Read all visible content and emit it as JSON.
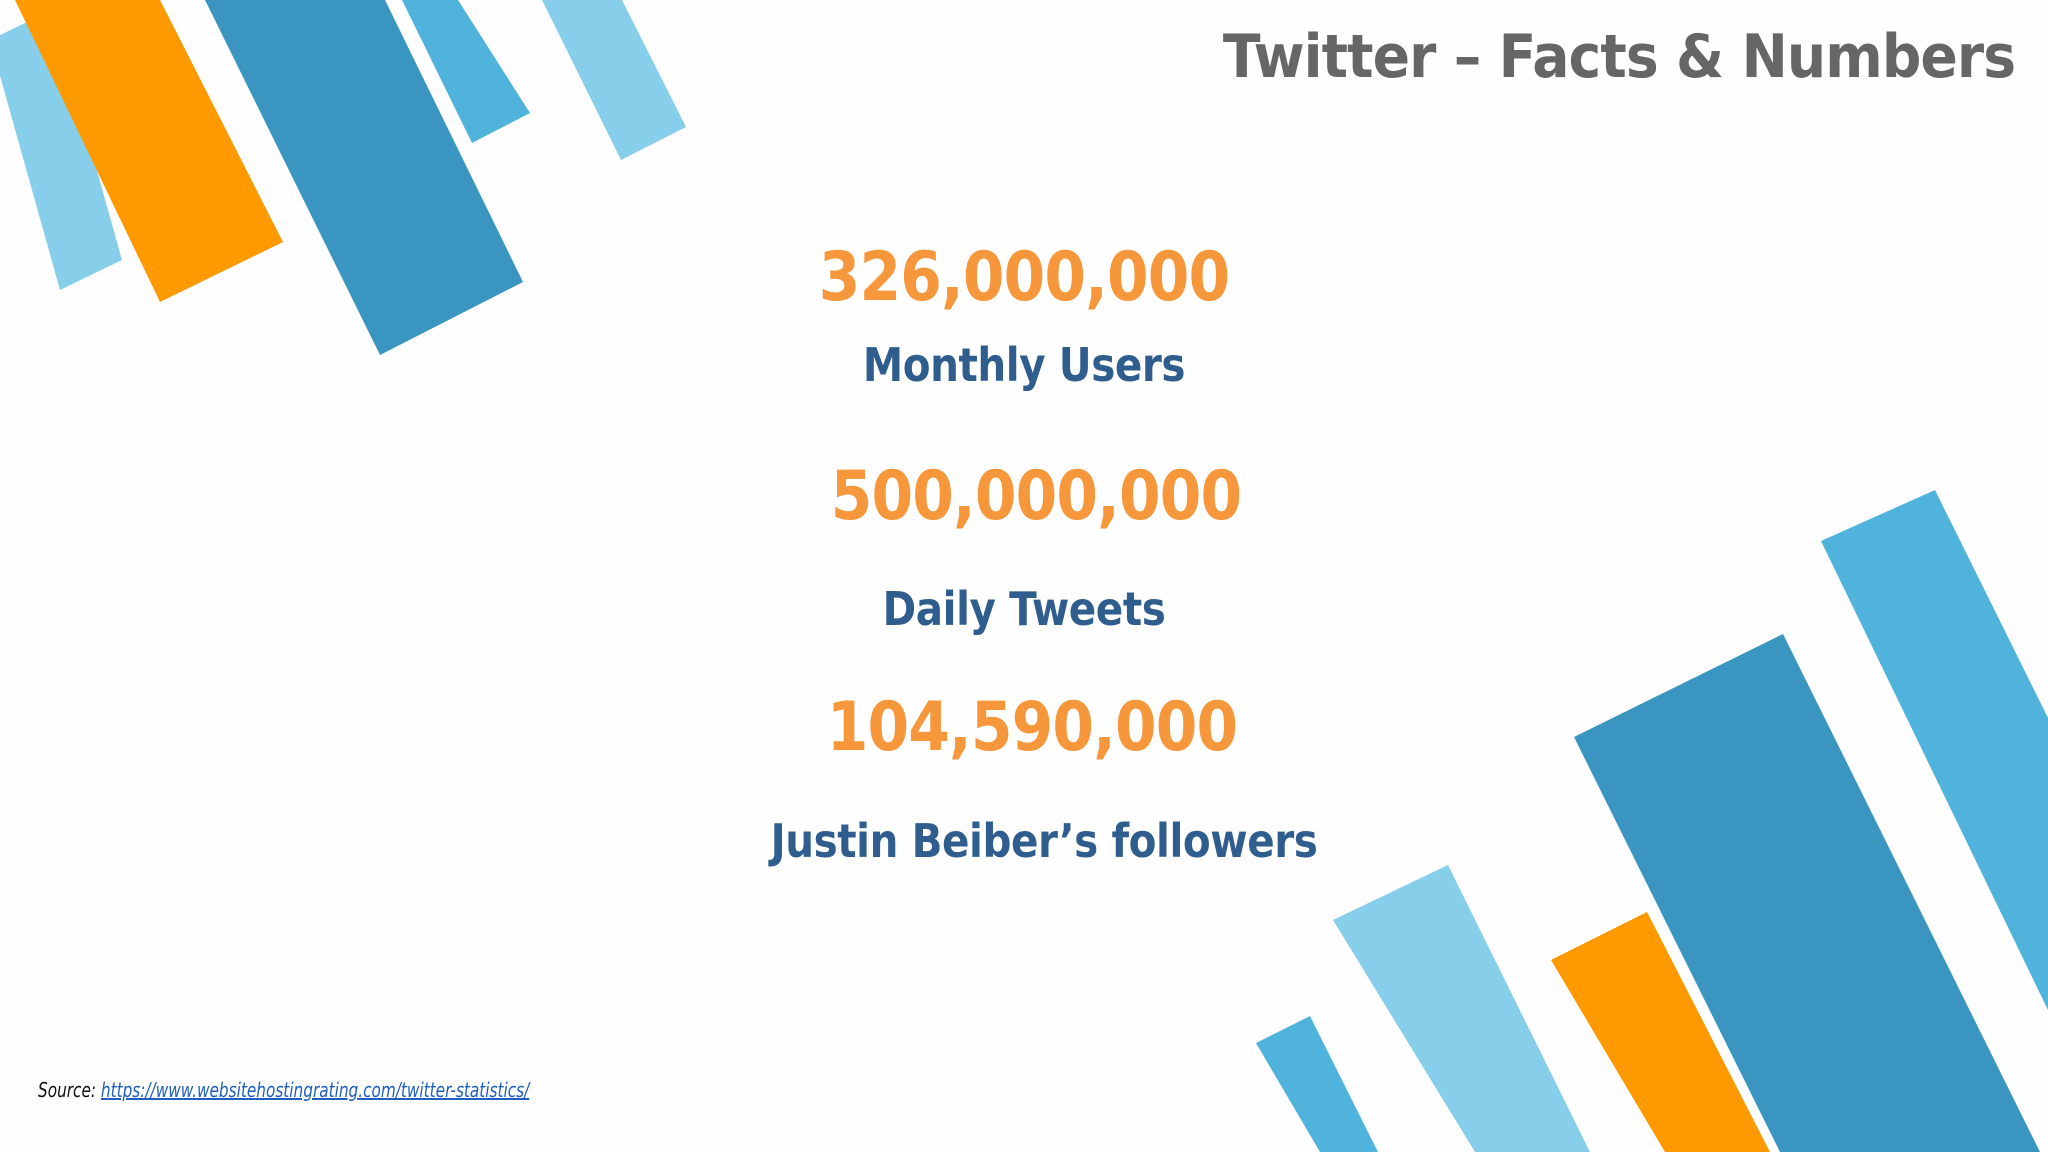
{
  "title": "Twitter –  Facts & Numbers",
  "stats": [
    {
      "number": "326,000,000",
      "label": "Monthly Users"
    },
    {
      "number": "500,000,000",
      "label": "Daily Tweets"
    },
    {
      "number": "104,590,000",
      "label": "Justin Beiber’s followers"
    }
  ],
  "source": {
    "prefix": "Source:",
    "link": "https://www.websitehostingrating.com/twitter-statistics/"
  },
  "colors": {
    "title": "#666666",
    "number": "#f5973a",
    "label": "#2e5d8e",
    "orange_bar": "#ff9900",
    "light_blue_bar": "#87ceeb",
    "mid_blue_bar": "#4fb3db",
    "dark_blue_bar": "#3a96c0"
  }
}
